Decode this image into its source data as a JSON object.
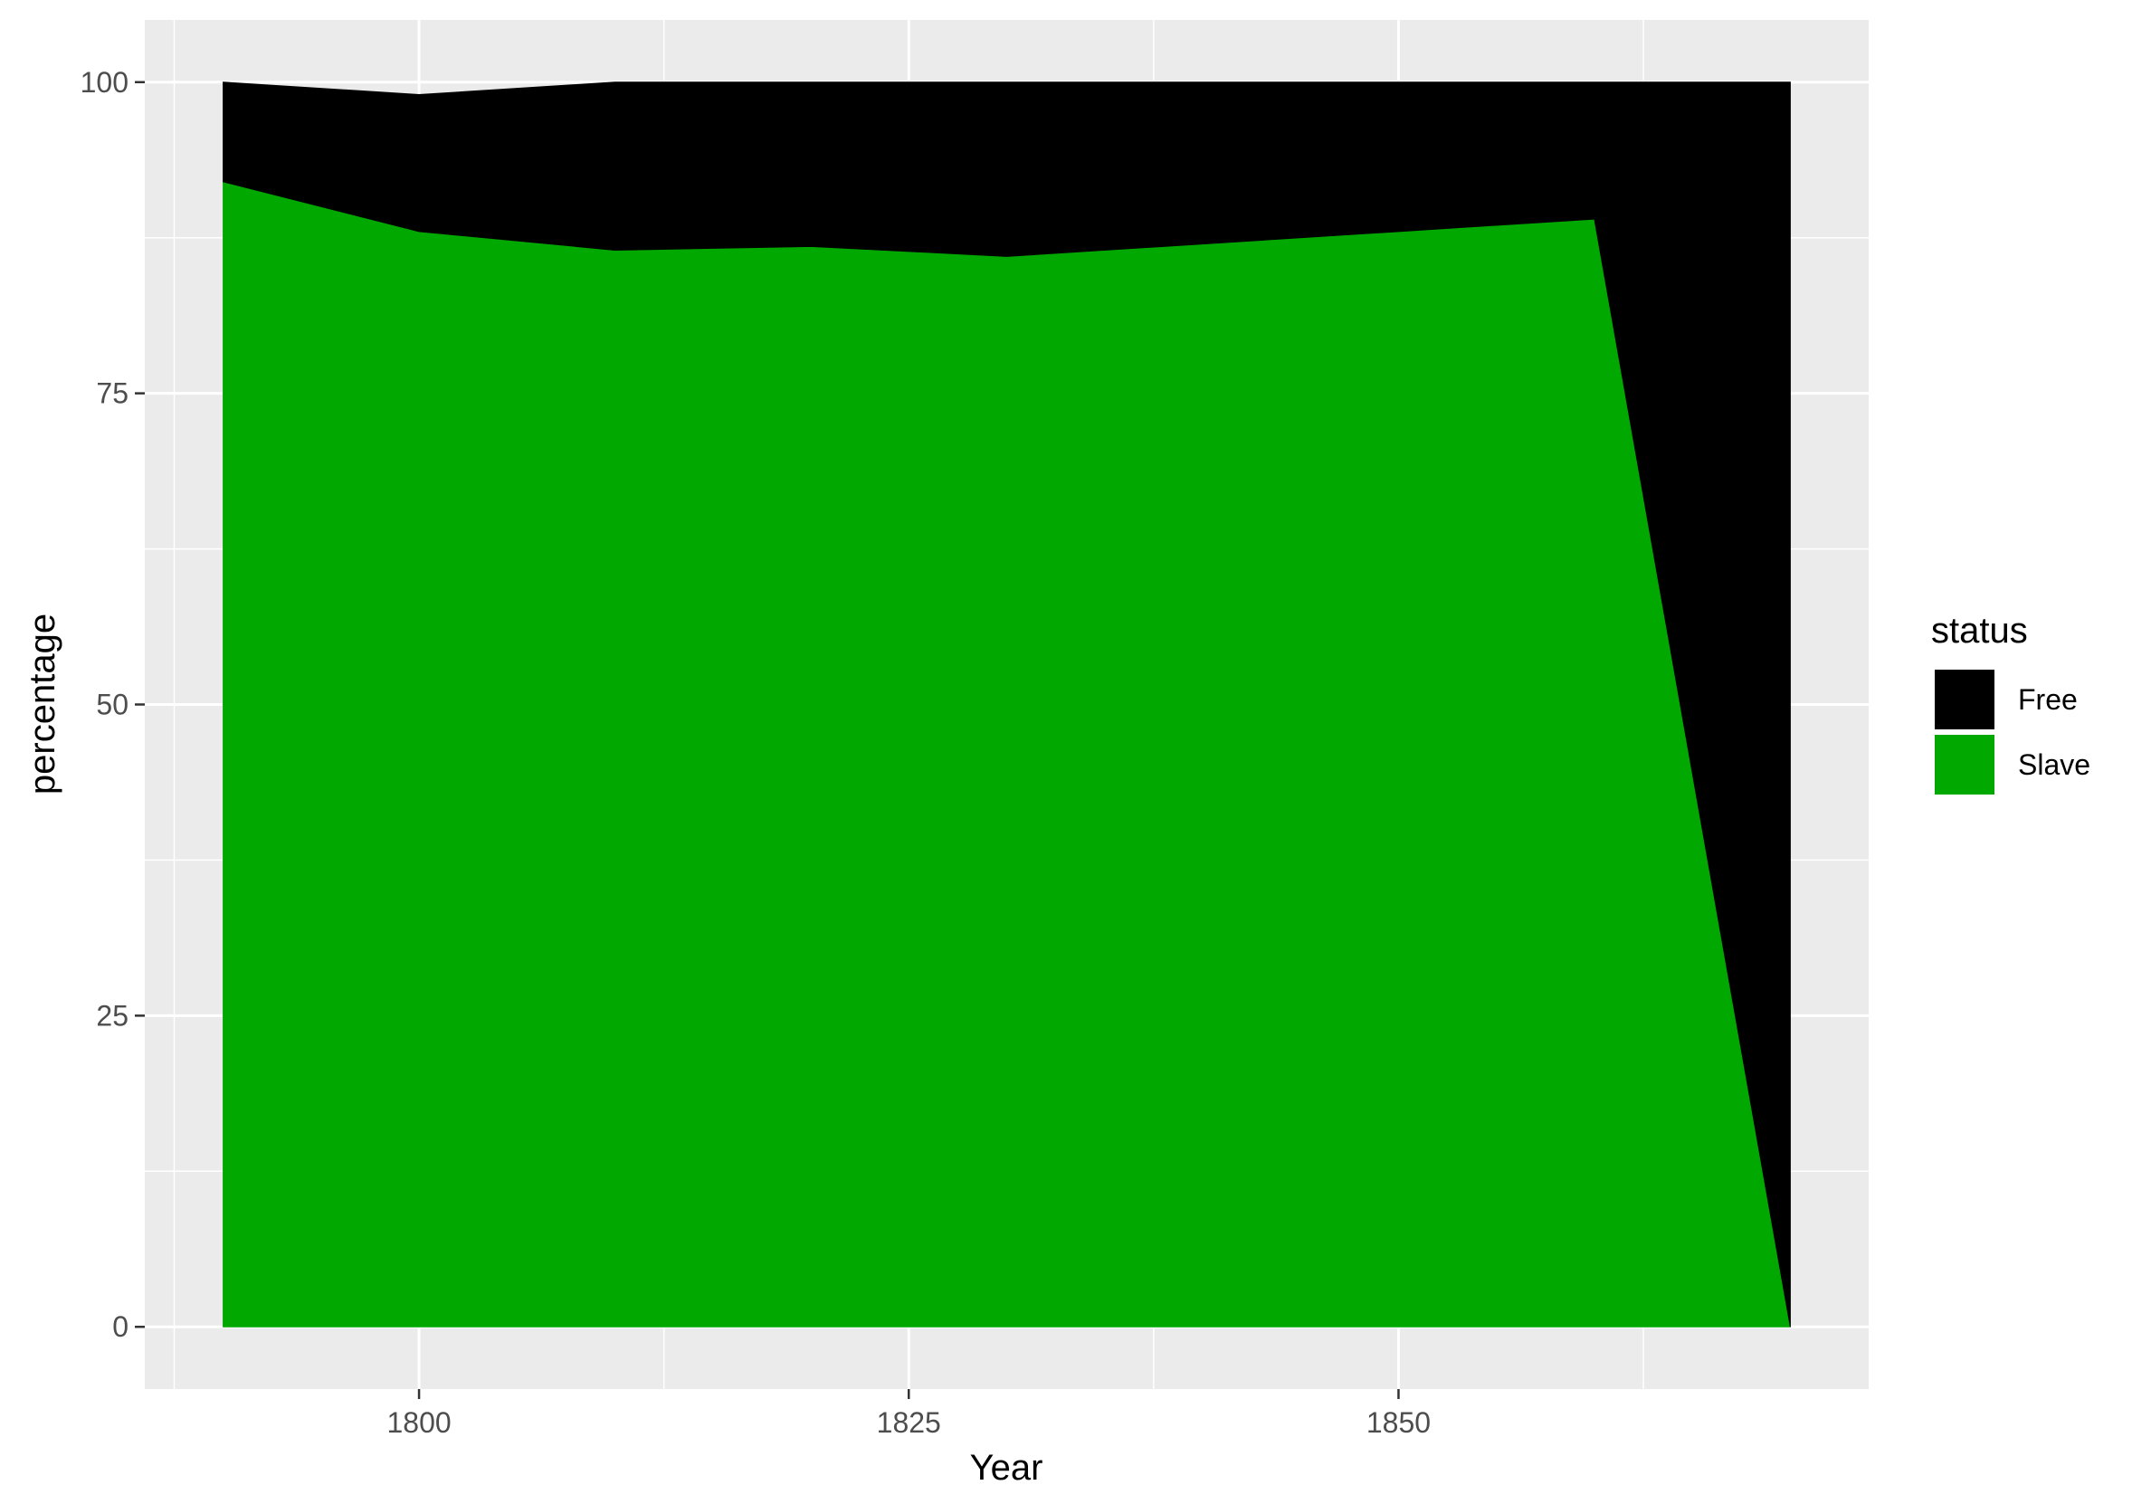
{
  "chart_data": {
    "type": "area",
    "stacked": true,
    "title": "",
    "xlabel": "Year",
    "ylabel": "percentage",
    "x": [
      1790,
      1800,
      1810,
      1820,
      1830,
      1840,
      1850,
      1860,
      1870
    ],
    "series": [
      {
        "name": "Slave",
        "color": "#00A800",
        "values": [
          92,
          88,
          86.5,
          86.8,
          86,
          87,
          88,
          89,
          0
        ]
      },
      {
        "name": "Free",
        "color": "#000000",
        "values": [
          8,
          11,
          13.5,
          13.2,
          14,
          13,
          12,
          11,
          100
        ]
      }
    ],
    "xlim": [
      1786,
      1874
    ],
    "ylim": [
      -5,
      105
    ],
    "x_ticks": [
      1800,
      1825,
      1850
    ],
    "y_ticks": [
      0,
      25,
      50,
      75,
      100
    ],
    "x_minor_ticks": [
      1787.5,
      1812.5,
      1837.5,
      1862.5
    ],
    "y_minor_ticks": [
      12.5,
      37.5,
      62.5,
      87.5
    ],
    "grid": true,
    "panel_background": "#EBEBEB",
    "legend": {
      "title": "status",
      "position": "right",
      "entries": [
        {
          "label": "Free",
          "color": "#000000"
        },
        {
          "label": "Slave",
          "color": "#00A800"
        }
      ]
    }
  }
}
